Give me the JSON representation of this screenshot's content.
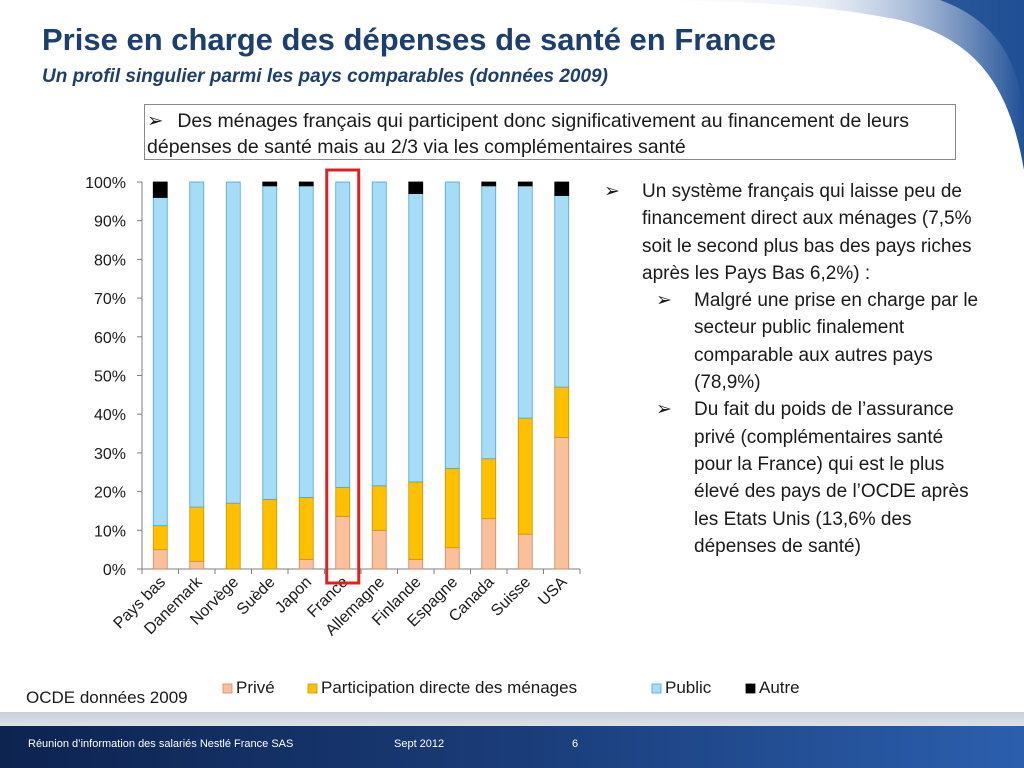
{
  "slide": {
    "title": "Prise en charge des dépenses de santé en France",
    "subtitle": "Un profil singulier parmi les pays comparables (données 2009)",
    "callout_text": "Des ménages français qui participent donc significativement au financement de leurs dépenses de santé mais au 2/3 via les complémentaires santé",
    "bullets": [
      {
        "level": 1,
        "text": "Un système français qui laisse peu de financement direct aux ménages (7,5% soit le second plus bas des pays riches après les Pays Bas 6,2%) :"
      },
      {
        "level": 2,
        "text": "Malgré une prise en charge par le secteur public finalement comparable aux autres pays (78,9%)"
      },
      {
        "level": 2,
        "text": "Du fait du poids de l’assurance privé (complémentaires santé pour la France) qui est le plus élevé des pays de l’OCDE après les Etats Unis (13,6% des dépenses de santé)"
      }
    ],
    "source": "OCDE données 2009",
    "footer_left": "Réunion d’information des salariés Nestlé France SAS",
    "footer_mid": "Sept 2012",
    "footer_page": "6",
    "bullet_icon": "arrowhead-bullet-icon",
    "highlight_category": "France"
  },
  "colors": {
    "title": "#1d3f6e",
    "prive": "#f9c09b",
    "participation": "#ffc000",
    "public": "#a6dcf5",
    "autre": "#000000",
    "highlight": "#e02020",
    "banner_dark": "#0d2350",
    "banner_mid": "#1f4f95"
  },
  "chart_data": {
    "type": "bar",
    "stacked": true,
    "percent": true,
    "categories": [
      "Pays bas",
      "Danemark",
      "Norvège",
      "Suède",
      "Japon",
      "France",
      "Allemagne",
      "Finlande",
      "Espagne",
      "Canada",
      "Suisse",
      "USA"
    ],
    "series": [
      {
        "name": "Privé",
        "values": [
          5.0,
          2.0,
          0.0,
          0.0,
          2.5,
          13.6,
          10.0,
          2.5,
          5.5,
          13.0,
          9.0,
          34.0
        ]
      },
      {
        "name": "Participation directe des ménages",
        "values": [
          6.2,
          14.0,
          17.0,
          18.0,
          16.0,
          7.5,
          11.5,
          20.0,
          20.5,
          15.5,
          30.0,
          13.0
        ]
      },
      {
        "name": "Public",
        "values": [
          84.8,
          84.0,
          83.0,
          81.0,
          80.5,
          78.9,
          78.5,
          74.5,
          74.0,
          70.5,
          60.0,
          49.5
        ]
      },
      {
        "name": "Autre",
        "values": [
          4.0,
          0.0,
          0.0,
          1.0,
          1.0,
          0.0,
          0.0,
          3.0,
          0.0,
          1.0,
          1.0,
          3.5
        ]
      }
    ],
    "yticks": [
      "0%",
      "10%",
      "20%",
      "30%",
      "40%",
      "50%",
      "60%",
      "70%",
      "80%",
      "90%",
      "100%"
    ],
    "ylim": [
      0,
      100
    ],
    "grid": false,
    "legend_position": "bottom"
  }
}
